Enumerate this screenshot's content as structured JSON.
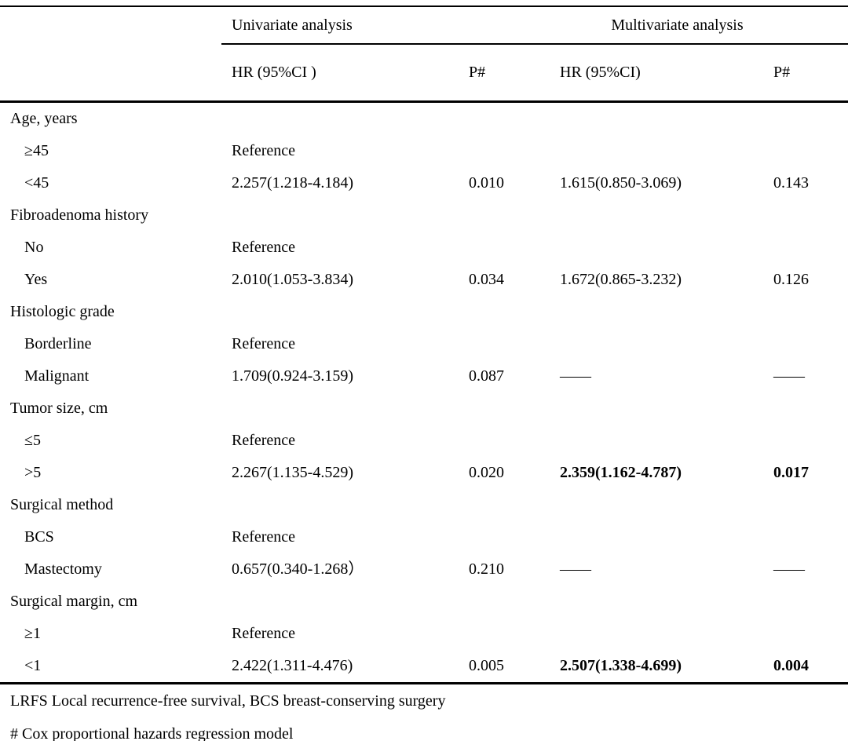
{
  "colors": {
    "background": "#ffffff",
    "text": "#000000",
    "rule": "#000000"
  },
  "table": {
    "group_headers": {
      "univariate": "Univariate analysis",
      "multivariate": "Multivariate analysis"
    },
    "column_headers": {
      "label": "",
      "hr_univariate": "HR (95%CI )",
      "p_univariate": "P#",
      "hr_multivariate": "HR (95%CI)",
      "p_multivariate": "P#"
    },
    "rows": [
      {
        "label": "Age, years",
        "indent": false,
        "cells": [
          "",
          "",
          "",
          ""
        ]
      },
      {
        "label": "≥45",
        "indent": true,
        "cells": [
          "Reference",
          "",
          "",
          ""
        ]
      },
      {
        "label": "<45",
        "indent": true,
        "cells": [
          "2.257(1.218-4.184)",
          "0.010",
          "1.615(0.850-3.069)",
          "0.143"
        ]
      },
      {
        "label": "Fibroadenoma history",
        "indent": false,
        "cells": [
          "",
          "",
          "",
          ""
        ]
      },
      {
        "label": "No",
        "indent": true,
        "cells": [
          "Reference",
          "",
          "",
          ""
        ]
      },
      {
        "label": "Yes",
        "indent": true,
        "cells": [
          "2.010(1.053-3.834)",
          "0.034",
          "1.672(0.865-3.232)",
          "0.126"
        ]
      },
      {
        "label": "Histologic grade",
        "indent": false,
        "cells": [
          "",
          "",
          "",
          ""
        ]
      },
      {
        "label": "Borderline",
        "indent": true,
        "cells": [
          "Reference",
          "",
          "",
          ""
        ]
      },
      {
        "label": "Malignant",
        "indent": true,
        "cells": [
          "1.709(0.924-3.159)",
          "0.087",
          "——",
          "——"
        ]
      },
      {
        "label": "Tumor size, cm",
        "indent": false,
        "cells": [
          "",
          "",
          "",
          ""
        ]
      },
      {
        "label": "≤5",
        "indent": true,
        "cells": [
          "Reference",
          "",
          "",
          ""
        ]
      },
      {
        "label": ">5",
        "indent": true,
        "cells": [
          "2.267(1.135-4.529)",
          "0.020",
          "2.359(1.162-4.787)",
          "0.017"
        ],
        "bold": [
          false,
          false,
          true,
          true
        ]
      },
      {
        "label": "Surgical method",
        "indent": false,
        "cells": [
          "",
          "",
          "",
          ""
        ]
      },
      {
        "label": "BCS",
        "indent": true,
        "cells": [
          "Reference",
          "",
          "",
          ""
        ]
      },
      {
        "label": "Mastectomy",
        "indent": true,
        "cells": [
          "0.657(0.340-1.268）",
          "0.210",
          "——",
          "——"
        ]
      },
      {
        "label": "Surgical margin, cm",
        "indent": false,
        "cells": [
          "",
          "",
          "",
          ""
        ]
      },
      {
        "label": "≥1",
        "indent": true,
        "cells": [
          "Reference",
          "",
          "",
          ""
        ]
      },
      {
        "label": "<1",
        "indent": true,
        "cells": [
          "2.422(1.311-4.476)",
          "0.005",
          "2.507(1.338-4.699)",
          "0.004"
        ],
        "bold": [
          false,
          false,
          true,
          true
        ]
      }
    ],
    "footnotes": [
      "LRFS Local recurrence-free survival, BCS breast-conserving surgery",
      "# Cox proportional hazards regression model"
    ]
  }
}
